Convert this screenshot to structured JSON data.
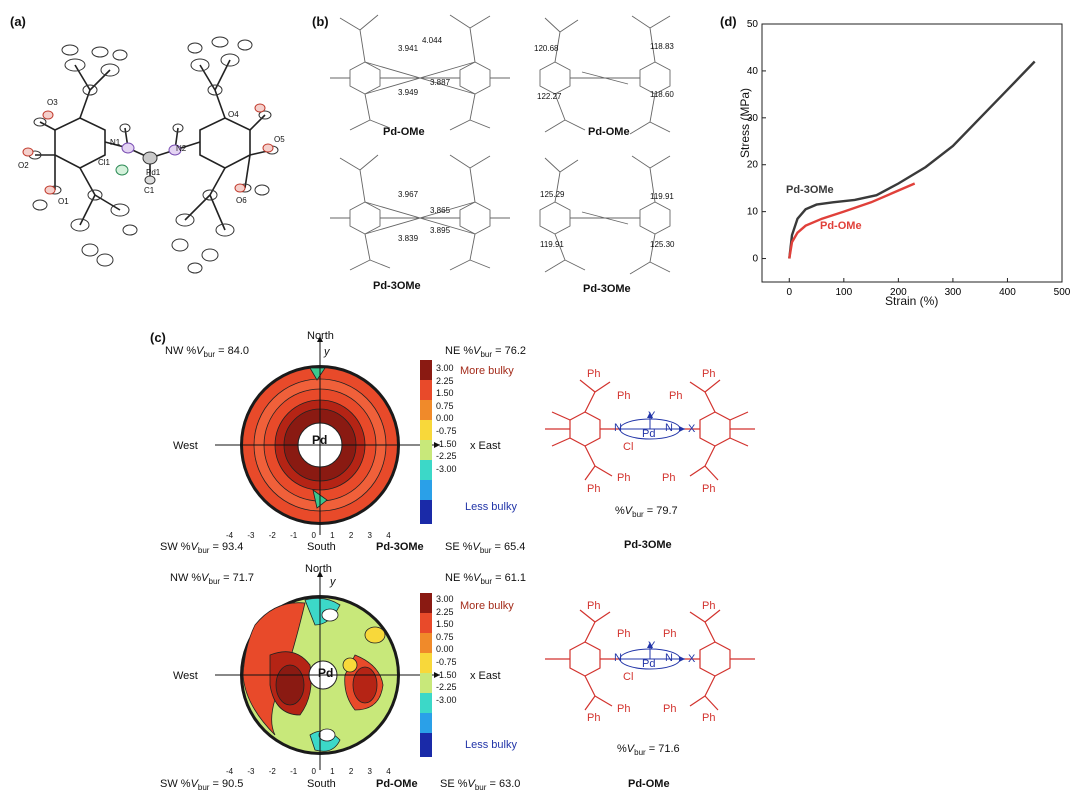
{
  "panels": {
    "a": {
      "label": "(a)",
      "atoms": [
        "O3",
        "O4",
        "O5",
        "O2",
        "O1",
        "O6",
        "N1",
        "N2",
        "Cl1",
        "Pd1",
        "C1"
      ]
    },
    "b": {
      "label": "(b)",
      "structures": [
        {
          "name": "Pd-OMe",
          "distances": [
            "3.941",
            "4.044",
            "3.887",
            "3.949"
          ]
        },
        {
          "name": "Pd-OMe",
          "angles": [
            "120.68",
            "118.83",
            "122.27",
            "118.60"
          ]
        },
        {
          "name": "Pd-3OMe",
          "distances": [
            "3.967",
            "3.865",
            "3.839",
            "3.895"
          ]
        },
        {
          "name": "Pd-3OMe",
          "angles": [
            "125.29",
            "119.91",
            "119.91",
            "125.30"
          ]
        }
      ]
    },
    "c": {
      "label": "(c)",
      "maps": [
        {
          "name": "Pd-3OMe",
          "nw": "84.0",
          "ne": "76.2",
          "sw": "93.4",
          "se": "65.4",
          "center": "Pd",
          "molecule_vbur": "79.7"
        },
        {
          "name": "Pd-OMe",
          "nw": "71.7",
          "ne": "61.1",
          "sw": "90.5",
          "se": "63.0",
          "center": "Pd",
          "molecule_vbur": "71.6"
        }
      ],
      "quadrant_prefix": {
        "nw": "NW %",
        "ne": "NE %",
        "sw": "SW %",
        "se": "SE %"
      },
      "vbur_symbol": "V",
      "vbur_sub": "bur",
      "directions": {
        "north": "North",
        "south": "South",
        "west": "West",
        "east": "x East",
        "y": "y"
      },
      "axis_ticks": [
        "-4",
        "-3",
        "-2",
        "-1",
        "0",
        "1",
        "2",
        "3",
        "4"
      ],
      "scale_ticks": [
        "3.00",
        "2.25",
        "1.50",
        "0.75",
        "0.00",
        "-0.75",
        "-1.50",
        "-2.25",
        "-3.00"
      ],
      "more_bulky": "More bulky",
      "less_bulky": "Less bulky",
      "molecule_vbur_prefix": "%",
      "molecule_labels": {
        "ph": "Ph",
        "pd": "Pd",
        "cl": "Cl",
        "n": "N",
        "x": "X",
        "y": "Y"
      }
    },
    "d": {
      "label": "(d)"
    }
  },
  "chart_data": {
    "type": "line",
    "xlabel": "Strain (%)",
    "ylabel": "Stress (MPa)",
    "xlim": [
      -50,
      500
    ],
    "ylim": [
      -5,
      50
    ],
    "xticks": [
      0,
      100,
      200,
      300,
      400,
      500
    ],
    "yticks": [
      0,
      10,
      20,
      30,
      40,
      50
    ],
    "series": [
      {
        "name": "Pd-3OMe",
        "color": "#3a3a3a",
        "x": [
          0,
          5,
          15,
          30,
          50,
          80,
          120,
          160,
          200,
          250,
          300,
          350,
          400,
          450
        ],
        "y": [
          0,
          5,
          8.5,
          10.5,
          11.5,
          12,
          12.5,
          13.5,
          16,
          19.5,
          24,
          30,
          36,
          42
        ]
      },
      {
        "name": "Pd-OMe",
        "color": "#e0403a",
        "x": [
          0,
          5,
          15,
          30,
          60,
          100,
          150,
          200,
          230
        ],
        "y": [
          0,
          3.5,
          5.5,
          7,
          8.5,
          10,
          12,
          14.5,
          16
        ]
      }
    ]
  }
}
